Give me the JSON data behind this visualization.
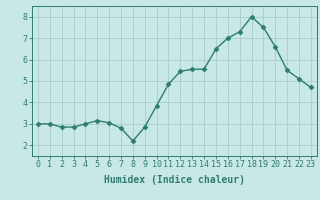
{
  "x": [
    0,
    1,
    2,
    3,
    4,
    5,
    6,
    7,
    8,
    9,
    10,
    11,
    12,
    13,
    14,
    15,
    16,
    17,
    18,
    19,
    20,
    21,
    22,
    23
  ],
  "y": [
    3.0,
    3.0,
    2.85,
    2.85,
    3.0,
    3.15,
    3.05,
    2.8,
    2.2,
    2.85,
    3.85,
    4.85,
    5.45,
    5.55,
    5.55,
    6.5,
    7.0,
    7.3,
    8.0,
    7.5,
    6.6,
    5.5,
    5.1,
    4.7
  ],
  "line_color": "#2e7d6e",
  "bg_color": "#c8e8e8",
  "grid_color": "#aacccc",
  "xlabel": "Humidex (Indice chaleur)",
  "ylim": [
    1.5,
    8.5
  ],
  "xlim": [
    -0.5,
    23.5
  ],
  "yticks": [
    2,
    3,
    4,
    5,
    6,
    7,
    8
  ],
  "xticks": [
    0,
    1,
    2,
    3,
    4,
    5,
    6,
    7,
    8,
    9,
    10,
    11,
    12,
    13,
    14,
    15,
    16,
    17,
    18,
    19,
    20,
    21,
    22,
    23
  ],
  "xtick_labels": [
    "0",
    "1",
    "2",
    "3",
    "4",
    "5",
    "6",
    "7",
    "8",
    "9",
    "10",
    "11",
    "12",
    "13",
    "14",
    "15",
    "16",
    "17",
    "18",
    "19",
    "20",
    "21",
    "22",
    "23"
  ],
  "marker": "D",
  "markersize": 2.5,
  "linewidth": 1.0,
  "xlabel_fontsize": 7.0,
  "tick_fontsize": 6.0
}
